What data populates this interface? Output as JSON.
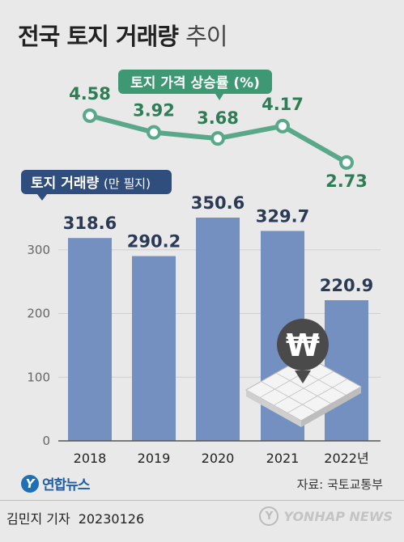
{
  "title": {
    "main": "전국 토지 거래량",
    "suffix": "추이"
  },
  "colors": {
    "bar": "#7390c0",
    "line": "#5aa88a",
    "line_label": "#2e7d56",
    "badge_bar": "#2f4d7d",
    "badge_line": "#3d9873"
  },
  "chart_data": [
    {
      "type": "bar",
      "categories": [
        "2018",
        "2019",
        "2020",
        "2021",
        "2022년"
      ],
      "values": [
        318.6,
        290.2,
        350.6,
        329.7,
        220.9
      ],
      "value_labels": [
        "318.6",
        "290.2",
        "350.6",
        "329.7",
        "220.9"
      ],
      "label": "토지 거래량",
      "unit": "(만 필지)",
      "ylim": [
        0,
        350.6
      ],
      "yticks": [
        "0",
        "100",
        "200",
        "300"
      ],
      "ytick_values": [
        0,
        100,
        200,
        300
      ],
      "grid": true
    },
    {
      "type": "line",
      "categories": [
        "2018",
        "2019",
        "2020",
        "2021",
        "2022년"
      ],
      "values": [
        4.58,
        3.92,
        3.68,
        4.17,
        2.73
      ],
      "value_labels": [
        "4.58",
        "3.92",
        "3.68",
        "4.17",
        "2.73"
      ],
      "label": "토지 가격 상승률 (%)"
    }
  ],
  "logo": {
    "mark": "Y",
    "text": "연합뉴스"
  },
  "source": "자료: 국토교통부",
  "byline": {
    "author": "김민지 기자",
    "date": "20230126"
  },
  "watermark": {
    "mark": "Y",
    "text": "YONHAP NEWS"
  },
  "icon": "won-coin-land-icon"
}
